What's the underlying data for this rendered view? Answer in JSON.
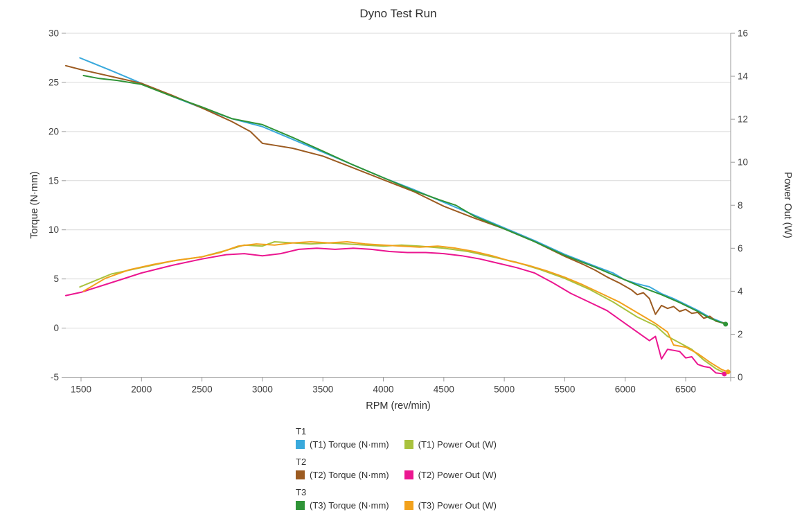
{
  "chart_data": {
    "type": "line",
    "title": "Dyno Test Run",
    "xlabel": "RPM (rev/min)",
    "ylabel_left": "Torque (N·mm)",
    "ylabel_right": "Power Out (W)",
    "grid": "horizontal-only",
    "legend_position": "bottom",
    "x_axis": {
      "min": 1374,
      "max": 6872,
      "ticks": [
        1500,
        2000,
        2500,
        3000,
        3500,
        4000,
        4500,
        5000,
        5500,
        6000,
        6500
      ]
    },
    "y_axis_left": {
      "min": -5,
      "max": 30,
      "ticks": [
        30,
        25,
        20,
        15,
        10,
        5,
        0,
        -5
      ]
    },
    "y_axis_right": {
      "min": 0,
      "max": 16,
      "ticks": [
        16,
        14,
        12,
        10,
        8,
        6,
        4,
        2,
        0
      ]
    },
    "colors": {
      "grid": "#d9d9d9",
      "axis": "#9b9b9b",
      "tick_text": "#3c3c3c"
    },
    "series": [
      {
        "name": "(T1) Torque (N·mm)",
        "axis": "left",
        "color": "#39a9dc",
        "marker": "none",
        "points": [
          [
            1490,
            27.5
          ],
          [
            1750,
            26.2
          ],
          [
            2000,
            24.9
          ],
          [
            2250,
            23.6
          ],
          [
            2500,
            22.4
          ],
          [
            2750,
            21.3
          ],
          [
            3000,
            20.5
          ],
          [
            3250,
            19.2
          ],
          [
            3500,
            17.9
          ],
          [
            3750,
            16.6
          ],
          [
            4000,
            15.3
          ],
          [
            4250,
            14.1
          ],
          [
            4500,
            12.8
          ],
          [
            4750,
            11.5
          ],
          [
            5000,
            10.2
          ],
          [
            5250,
            8.9
          ],
          [
            5500,
            7.5
          ],
          [
            5750,
            6.3
          ],
          [
            5900,
            5.6
          ],
          [
            6000,
            4.9
          ],
          [
            6100,
            4.5
          ],
          [
            6200,
            4.2
          ],
          [
            6300,
            3.5
          ],
          [
            6400,
            3.0
          ],
          [
            6500,
            2.4
          ],
          [
            6600,
            1.8
          ],
          [
            6700,
            1.1
          ],
          [
            6820,
            0.5
          ]
        ]
      },
      {
        "name": "(T1) Power Out (W)",
        "axis": "right",
        "color": "#a9c23e",
        "marker": "none",
        "points": [
          [
            1490,
            4.2
          ],
          [
            1750,
            4.8
          ],
          [
            2000,
            5.1
          ],
          [
            2250,
            5.4
          ],
          [
            2500,
            5.6
          ],
          [
            2700,
            5.9
          ],
          [
            2850,
            6.15
          ],
          [
            3000,
            6.1
          ],
          [
            3100,
            6.3
          ],
          [
            3250,
            6.25
          ],
          [
            3400,
            6.2
          ],
          [
            3550,
            6.25
          ],
          [
            3700,
            6.2
          ],
          [
            3850,
            6.15
          ],
          [
            4000,
            6.1
          ],
          [
            4150,
            6.15
          ],
          [
            4300,
            6.1
          ],
          [
            4500,
            6.0
          ],
          [
            4700,
            5.85
          ],
          [
            4900,
            5.6
          ],
          [
            5100,
            5.35
          ],
          [
            5300,
            5.0
          ],
          [
            5500,
            4.6
          ],
          [
            5700,
            4.1
          ],
          [
            5900,
            3.5
          ],
          [
            6100,
            2.8
          ],
          [
            6250,
            2.4
          ],
          [
            6350,
            1.9
          ],
          [
            6450,
            1.6
          ],
          [
            6550,
            1.3
          ],
          [
            6650,
            0.8
          ],
          [
            6750,
            0.4
          ],
          [
            6820,
            0.2
          ]
        ]
      },
      {
        "name": "(T2) Torque (N·mm)",
        "axis": "left",
        "color": "#9c5b21",
        "marker": "none",
        "points": [
          [
            1374,
            26.7
          ],
          [
            1500,
            26.3
          ],
          [
            1750,
            25.6
          ],
          [
            2000,
            24.9
          ],
          [
            2250,
            23.7
          ],
          [
            2500,
            22.4
          ],
          [
            2750,
            21.0
          ],
          [
            2900,
            20.0
          ],
          [
            3000,
            18.8
          ],
          [
            3100,
            18.6
          ],
          [
            3250,
            18.3
          ],
          [
            3500,
            17.5
          ],
          [
            3750,
            16.3
          ],
          [
            4000,
            15.1
          ],
          [
            4250,
            13.9
          ],
          [
            4500,
            12.4
          ],
          [
            4750,
            11.2
          ],
          [
            5000,
            10.1
          ],
          [
            5250,
            8.8
          ],
          [
            5500,
            7.3
          ],
          [
            5650,
            6.5
          ],
          [
            5750,
            5.9
          ],
          [
            5850,
            5.2
          ],
          [
            5950,
            4.6
          ],
          [
            6050,
            3.9
          ],
          [
            6100,
            3.4
          ],
          [
            6150,
            3.6
          ],
          [
            6200,
            3.0
          ],
          [
            6250,
            1.4
          ],
          [
            6300,
            2.3
          ],
          [
            6350,
            2.0
          ],
          [
            6400,
            2.2
          ],
          [
            6450,
            1.7
          ],
          [
            6500,
            1.9
          ],
          [
            6550,
            1.5
          ],
          [
            6600,
            1.6
          ],
          [
            6650,
            1.0
          ],
          [
            6700,
            1.2
          ],
          [
            6750,
            0.7
          ],
          [
            6820,
            0.5
          ]
        ]
      },
      {
        "name": "(T2) Power Out (W)",
        "axis": "right",
        "color": "#eb1690",
        "marker": "end-dot",
        "points": [
          [
            1374,
            3.8
          ],
          [
            1500,
            3.95
          ],
          [
            1750,
            4.4
          ],
          [
            2000,
            4.85
          ],
          [
            2250,
            5.2
          ],
          [
            2500,
            5.5
          ],
          [
            2700,
            5.7
          ],
          [
            2850,
            5.75
          ],
          [
            3000,
            5.65
          ],
          [
            3150,
            5.75
          ],
          [
            3300,
            5.95
          ],
          [
            3450,
            6.0
          ],
          [
            3600,
            5.95
          ],
          [
            3750,
            6.0
          ],
          [
            3900,
            5.95
          ],
          [
            4050,
            5.85
          ],
          [
            4200,
            5.8
          ],
          [
            4350,
            5.8
          ],
          [
            4500,
            5.75
          ],
          [
            4650,
            5.65
          ],
          [
            4800,
            5.5
          ],
          [
            4950,
            5.3
          ],
          [
            5100,
            5.1
          ],
          [
            5250,
            4.85
          ],
          [
            5400,
            4.4
          ],
          [
            5550,
            3.9
          ],
          [
            5700,
            3.5
          ],
          [
            5850,
            3.1
          ],
          [
            6000,
            2.5
          ],
          [
            6100,
            2.1
          ],
          [
            6200,
            1.7
          ],
          [
            6250,
            1.9
          ],
          [
            6300,
            0.85
          ],
          [
            6350,
            1.3
          ],
          [
            6400,
            1.25
          ],
          [
            6450,
            1.2
          ],
          [
            6500,
            0.9
          ],
          [
            6550,
            0.95
          ],
          [
            6600,
            0.6
          ],
          [
            6650,
            0.5
          ],
          [
            6700,
            0.45
          ],
          [
            6750,
            0.2
          ],
          [
            6820,
            0.15
          ]
        ]
      },
      {
        "name": "(T3) Torque (N·mm)",
        "axis": "left",
        "color": "#2f9437",
        "marker": "end-dot",
        "points": [
          [
            1520,
            25.7
          ],
          [
            1650,
            25.4
          ],
          [
            1800,
            25.2
          ],
          [
            2000,
            24.8
          ],
          [
            2250,
            23.6
          ],
          [
            2500,
            22.5
          ],
          [
            2750,
            21.3
          ],
          [
            3000,
            20.7
          ],
          [
            3250,
            19.4
          ],
          [
            3500,
            18.0
          ],
          [
            3750,
            16.6
          ],
          [
            4000,
            15.3
          ],
          [
            4250,
            14.0
          ],
          [
            4500,
            12.9
          ],
          [
            4600,
            12.5
          ],
          [
            4750,
            11.4
          ],
          [
            5000,
            10.1
          ],
          [
            5250,
            8.8
          ],
          [
            5500,
            7.4
          ],
          [
            5750,
            6.2
          ],
          [
            6000,
            4.9
          ],
          [
            6150,
            4.1
          ],
          [
            6300,
            3.4
          ],
          [
            6450,
            2.6
          ],
          [
            6600,
            1.7
          ],
          [
            6700,
            1.0
          ],
          [
            6830,
            0.4
          ]
        ]
      },
      {
        "name": "(T3) Power Out (W)",
        "axis": "right",
        "color": "#f2a11c",
        "marker": "end-dot",
        "points": [
          [
            1520,
            4.0
          ],
          [
            1700,
            4.6
          ],
          [
            1900,
            5.0
          ],
          [
            2100,
            5.25
          ],
          [
            2300,
            5.45
          ],
          [
            2500,
            5.6
          ],
          [
            2650,
            5.8
          ],
          [
            2800,
            6.1
          ],
          [
            2950,
            6.2
          ],
          [
            3100,
            6.15
          ],
          [
            3250,
            6.25
          ],
          [
            3400,
            6.3
          ],
          [
            3550,
            6.25
          ],
          [
            3700,
            6.3
          ],
          [
            3850,
            6.2
          ],
          [
            4000,
            6.15
          ],
          [
            4150,
            6.1
          ],
          [
            4300,
            6.05
          ],
          [
            4450,
            6.1
          ],
          [
            4600,
            6.0
          ],
          [
            4750,
            5.85
          ],
          [
            4900,
            5.65
          ],
          [
            5050,
            5.4
          ],
          [
            5200,
            5.2
          ],
          [
            5350,
            4.95
          ],
          [
            5500,
            4.65
          ],
          [
            5650,
            4.3
          ],
          [
            5800,
            3.9
          ],
          [
            5950,
            3.5
          ],
          [
            6100,
            3.0
          ],
          [
            6250,
            2.5
          ],
          [
            6350,
            2.1
          ],
          [
            6400,
            1.5
          ],
          [
            6500,
            1.4
          ],
          [
            6600,
            1.1
          ],
          [
            6700,
            0.7
          ],
          [
            6800,
            0.35
          ],
          [
            6850,
            0.25
          ]
        ]
      }
    ]
  },
  "legend": {
    "groups": [
      {
        "header": "T1",
        "items": [
          {
            "label": "(T1) Torque (N·mm)",
            "series": 0
          },
          {
            "label": "(T1) Power Out (W)",
            "series": 1
          }
        ]
      },
      {
        "header": "T2",
        "items": [
          {
            "label": "(T2) Torque (N·mm)",
            "series": 2
          },
          {
            "label": "(T2) Power Out (W)",
            "series": 3
          }
        ]
      },
      {
        "header": "T3",
        "items": [
          {
            "label": "(T3) Torque (N·mm)",
            "series": 4
          },
          {
            "label": "(T3) Power Out (W)",
            "series": 5
          }
        ]
      }
    ]
  }
}
